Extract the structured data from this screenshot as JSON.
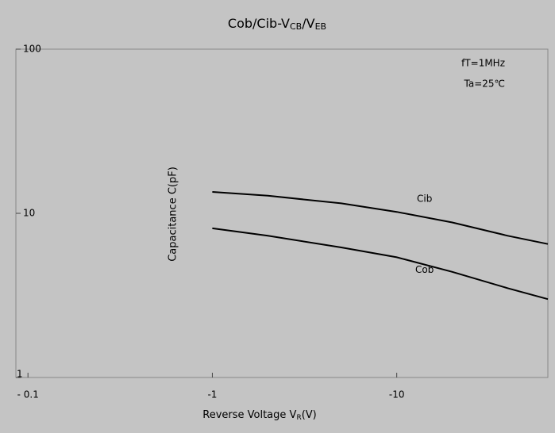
{
  "chart_data": {
    "type": "line",
    "title": [
      "Cob/Cib-V",
      "CB",
      "/V",
      "EB"
    ],
    "x_label": [
      "Reverse Voltage  V",
      "R",
      "(V)"
    ],
    "y_label": "Capacitance   C(pF)",
    "annotations": [
      "fT=1MHz",
      "Ta=25℃"
    ],
    "x": [
      1,
      2,
      5,
      10,
      20,
      40,
      66
    ],
    "series": [
      {
        "name": "Cib",
        "color": "#000000",
        "values": [
          13.5,
          12.8,
          11.5,
          10.2,
          8.8,
          7.3,
          6.5
        ]
      },
      {
        "name": "Cob",
        "color": "#000000",
        "values": [
          8.1,
          7.3,
          6.2,
          5.4,
          4.4,
          3.5,
          3.0
        ]
      }
    ],
    "xlog": true,
    "ylog": true,
    "xlim": [
      0.086,
      66
    ],
    "ylim": [
      1,
      100
    ],
    "xticks": [
      {
        "value": 0.1,
        "label": "- 0.1"
      },
      {
        "value": 1,
        "label": "-1"
      },
      {
        "value": 10,
        "label": "-10"
      }
    ],
    "yticks": [
      1,
      10,
      100
    ]
  }
}
